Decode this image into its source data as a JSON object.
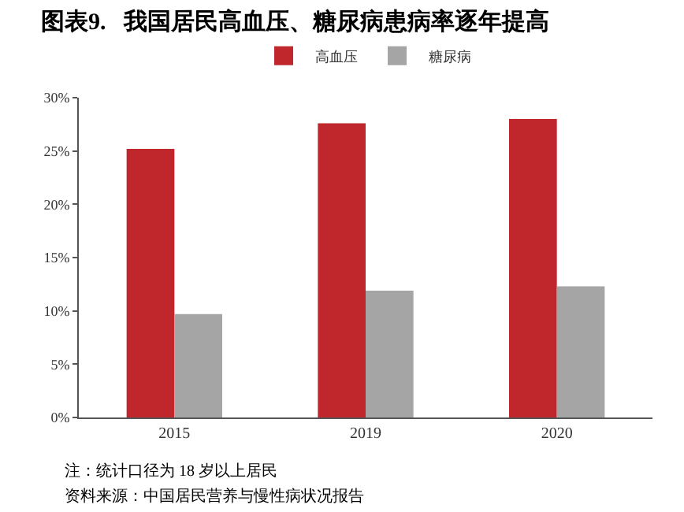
{
  "chart_data": {
    "type": "bar",
    "title": "图表9.   我国居民高血压、糖尿病患病率逐年提高",
    "categories": [
      "2015",
      "2019",
      "2020"
    ],
    "series": [
      {
        "name": "高血压",
        "color": "#c0272d",
        "values": [
          25.2,
          27.6,
          28.0
        ]
      },
      {
        "name": "糖尿病",
        "color": "#a5a5a5",
        "values": [
          9.7,
          11.9,
          12.3
        ]
      }
    ],
    "ylim": [
      0,
      30
    ],
    "yticks": [
      {
        "value": 0,
        "label": "0%"
      },
      {
        "value": 5,
        "label": "5%"
      },
      {
        "value": 10,
        "label": "10%"
      },
      {
        "value": 15,
        "label": "15%"
      },
      {
        "value": 20,
        "label": "20%"
      },
      {
        "value": 25,
        "label": "25%"
      },
      {
        "value": 30,
        "label": "30%"
      }
    ],
    "legend": "top",
    "annotations": [
      "注：统计口径为 18 岁以上居民",
      "资料来源：中国居民营养与慢性病状况报告"
    ]
  }
}
